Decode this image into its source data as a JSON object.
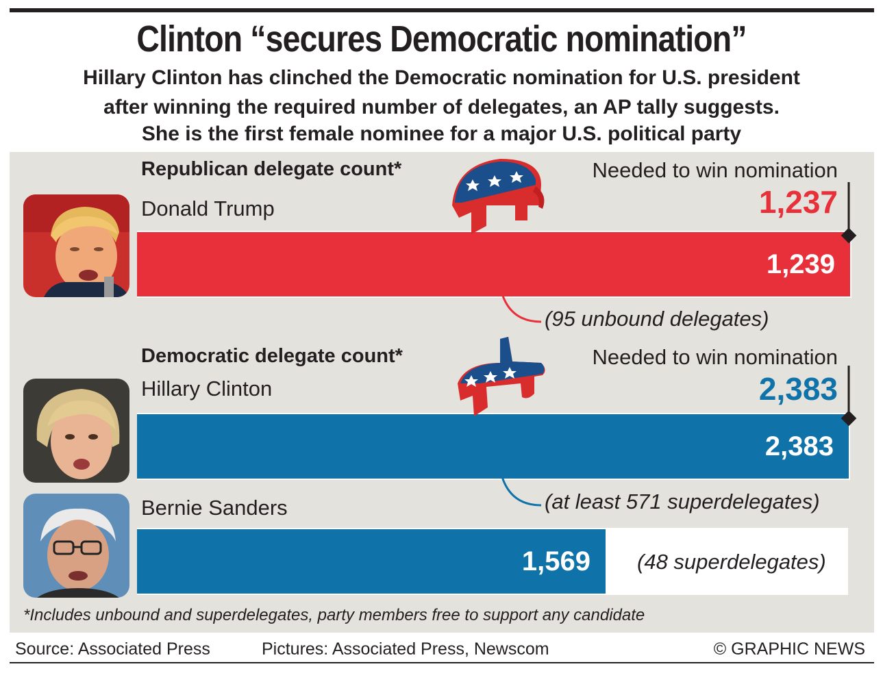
{
  "headline": "Clinton “secures Democratic nomination”",
  "subhead": [
    "Hillary Clinton has clinched the Democratic nomination for U.S. president",
    "after winning the required number of delegates, an AP tally suggests.",
    "She is the first female nominee for a major U.S. political party"
  ],
  "republican": {
    "section_title": "Republican delegate count*",
    "candidate": "Donald Trump",
    "needed_label": "Needed to win nomination",
    "needed_value": "1,237",
    "bar_value": "1,239",
    "note": "(95 unbound delegates)",
    "color": "#e8303b"
  },
  "democratic": {
    "section_title": "Democratic delegate count*",
    "needed_label": "Needed to win nomination",
    "needed_value": "2,383",
    "color": "#0f72a8",
    "candidates": [
      {
        "name": "Hillary Clinton",
        "bar_value": "2,383",
        "note": "(at least 571 superdelegates)"
      },
      {
        "name": "Bernie Sanders",
        "bar_value": "1,569",
        "note": "(48 superdelegates)"
      }
    ]
  },
  "footnote": "*Includes unbound and superdelegates, party members free to support any candidate",
  "credits": {
    "source": "Source: Associated Press",
    "pictures": "Pictures: Associated Press, Newscom",
    "copyright": "© GRAPHIC NEWS"
  },
  "icons": [
    "republican-elephant-icon",
    "democratic-donkey-icon"
  ],
  "chart_data": {
    "type": "bar",
    "groups": [
      {
        "title": "Republican delegate count*",
        "threshold": 1237,
        "threshold_label": "Needed to win nomination",
        "categories": [
          "Donald Trump"
        ],
        "values": [
          1239
        ],
        "annotations": [
          "(95 unbound delegates)"
        ]
      },
      {
        "title": "Democratic delegate count*",
        "threshold": 2383,
        "threshold_label": "Needed to win nomination",
        "categories": [
          "Hillary Clinton",
          "Bernie Sanders"
        ],
        "values": [
          2383,
          1569
        ],
        "annotations": [
          "(at least 571 superdelegates)",
          "(48 superdelegates)"
        ]
      }
    ]
  }
}
